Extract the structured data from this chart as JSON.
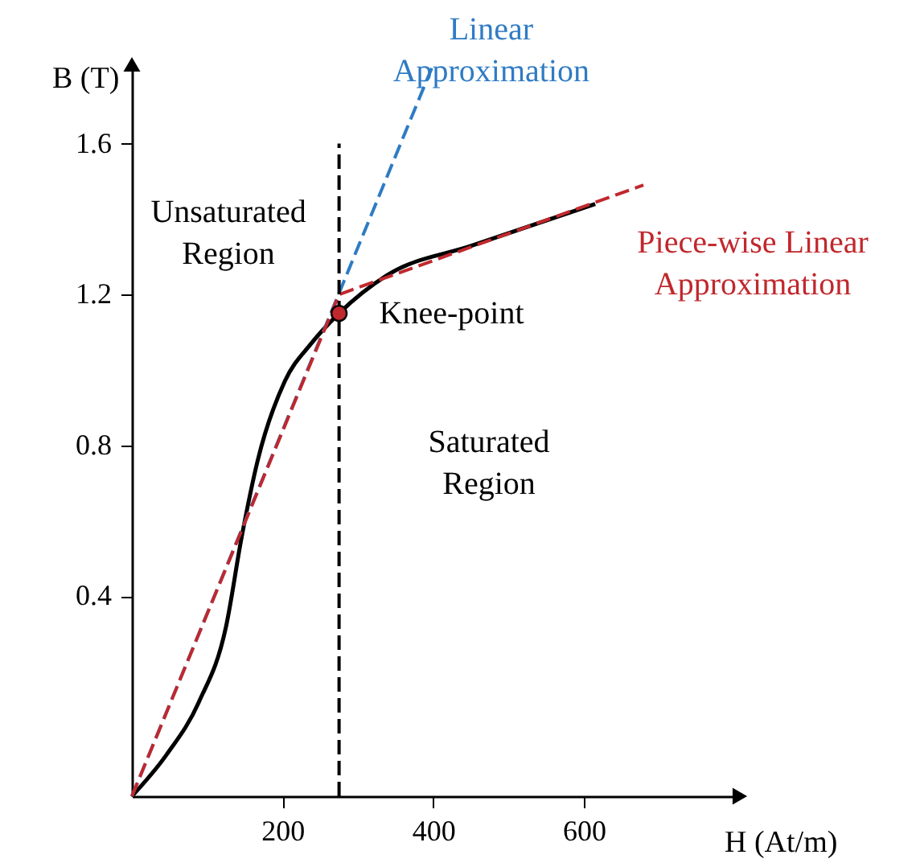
{
  "chart_data": {
    "type": "line",
    "xlabel": "H (At/m)",
    "ylabel": "B (T)",
    "xlim": [
      0,
      807
    ],
    "ylim": [
      -0.13,
      1.81
    ],
    "xticks": [
      200,
      400,
      600
    ],
    "yticks": [
      0.4,
      0.8,
      1.2,
      1.6
    ],
    "grid": false,
    "series": [
      {
        "color": "#000000",
        "line_style": "solid",
        "x": [
          0,
          46,
          89,
          125,
          146,
          167,
          203,
          238,
          275,
          338,
          452,
          615
        ],
        "values": [
          -0.13,
          -0.02,
          0.12,
          0.32,
          0.56,
          0.76,
          0.97,
          1.07,
          1.15,
          1.25,
          1.33,
          1.44
        ]
      },
      {
        "name": "Linear Approximation",
        "color": "#2f7bc4",
        "line_style": "dashed",
        "x": [
          0,
          398
        ],
        "values": [
          -0.13,
          1.8
        ]
      },
      {
        "name": "Piece-wise Linear Approximation",
        "color": "#c0282d",
        "line_style": "dashed",
        "x": [
          0,
          275,
          679
        ],
        "values": [
          -0.13,
          1.2,
          1.49
        ]
      },
      {
        "color": "#000000",
        "line_style": "dashed",
        "x": [
          275,
          275
        ],
        "values": [
          -0.13,
          1.6
        ]
      },
      {
        "type": "scatter",
        "color": "#c0282d",
        "marker": "circle",
        "x": [
          275
        ],
        "values": [
          1.15
        ]
      }
    ],
    "annotations": [
      "Unsaturated Region",
      "Saturated Region",
      {
        "text": "Knee-point",
        "x": 275,
        "y": 1.15
      }
    ]
  }
}
